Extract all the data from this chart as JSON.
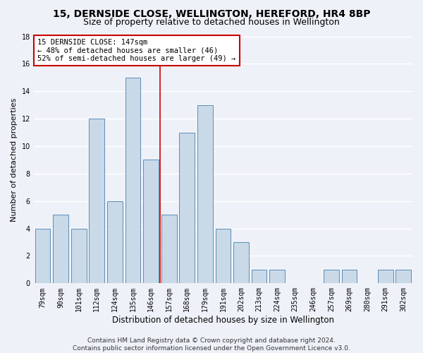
{
  "title": "15, DERNSIDE CLOSE, WELLINGTON, HEREFORD, HR4 8BP",
  "subtitle": "Size of property relative to detached houses in Wellington",
  "xlabel": "Distribution of detached houses by size in Wellington",
  "ylabel": "Number of detached properties",
  "categories": [
    "79sqm",
    "90sqm",
    "101sqm",
    "112sqm",
    "124sqm",
    "135sqm",
    "146sqm",
    "157sqm",
    "168sqm",
    "179sqm",
    "191sqm",
    "202sqm",
    "213sqm",
    "224sqm",
    "235sqm",
    "246sqm",
    "257sqm",
    "269sqm",
    "280sqm",
    "291sqm",
    "302sqm"
  ],
  "values": [
    4,
    5,
    4,
    12,
    6,
    15,
    9,
    5,
    11,
    13,
    4,
    3,
    1,
    1,
    0,
    0,
    1,
    1,
    0,
    1,
    1
  ],
  "bar_color": "#c9d9e8",
  "bar_edge_color": "#5b8db8",
  "background_color": "#eef2f8",
  "grid_color": "#ffffff",
  "annotation_text": "15 DERNSIDE CLOSE: 147sqm\n← 48% of detached houses are smaller (46)\n52% of semi-detached houses are larger (49) →",
  "annotation_box_color": "#ffffff",
  "annotation_box_edge": "#cc0000",
  "ref_line_color": "#cc0000",
  "ylim": [
    0,
    18
  ],
  "yticks": [
    0,
    2,
    4,
    6,
    8,
    10,
    12,
    14,
    16,
    18
  ],
  "footnote": "Contains HM Land Registry data © Crown copyright and database right 2024.\nContains public sector information licensed under the Open Government Licence v3.0.",
  "title_fontsize": 10,
  "subtitle_fontsize": 9,
  "xlabel_fontsize": 8.5,
  "ylabel_fontsize": 8,
  "tick_fontsize": 7,
  "annot_fontsize": 7.5,
  "footnote_fontsize": 6.5
}
